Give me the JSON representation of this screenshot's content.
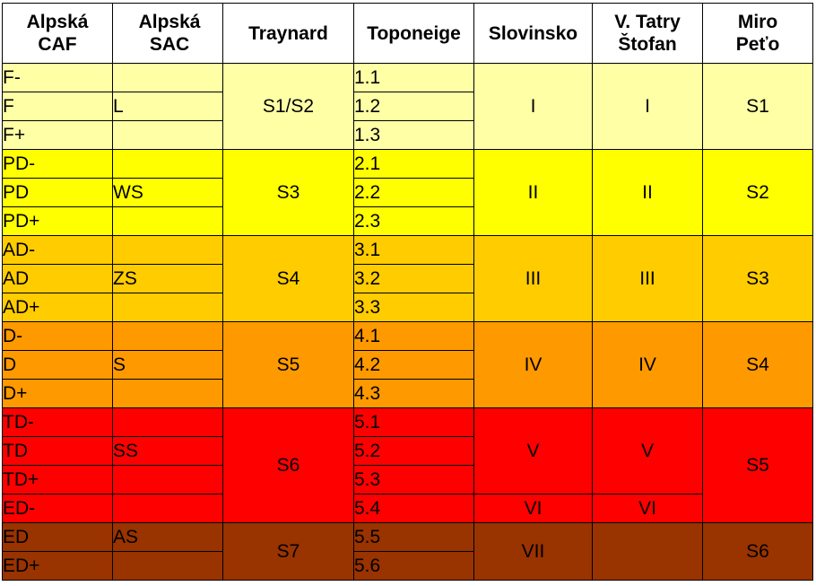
{
  "headers": {
    "caf": [
      "Alpská",
      "CAF"
    ],
    "sac": [
      "Alpská",
      "SAC"
    ],
    "traynard": "Traynard",
    "toponeige": "Toponeige",
    "slovinsko": "Slovinsko",
    "tatry": [
      "V. Tatry",
      "Štofan"
    ],
    "miro": [
      "Miro",
      "Peťo"
    ]
  },
  "colors": {
    "band1": "#FFFFA6",
    "band2": "#FFFF00",
    "band3": "#FFCC00",
    "band4": "#FF9900",
    "band5": "#FF0000",
    "band6": "#993300"
  },
  "caf": [
    "F-",
    "F",
    "F+",
    "PD-",
    "PD",
    "PD+",
    "AD-",
    "AD",
    "AD+",
    "D-",
    "D",
    "D+",
    "TD-",
    "TD",
    "TD+",
    "ED-",
    "ED",
    "ED+"
  ],
  "sac": [
    "L",
    "WS",
    "ZS",
    "S",
    "SS",
    "AS"
  ],
  "traynard": [
    "S1/S2",
    "S3",
    "S4",
    "S5",
    "S6",
    "S7"
  ],
  "toponeige": [
    "1.1",
    "1.2",
    "1.3",
    "2.1",
    "2.2",
    "2.3",
    "3.1",
    "3.2",
    "3.3",
    "4.1",
    "4.2",
    "4.3",
    "5.1",
    "5.2",
    "5.3",
    "5.4",
    "5.5",
    "5.6"
  ],
  "slovinsko": [
    "I",
    "II",
    "III",
    "IV",
    "V",
    "VI",
    "VII"
  ],
  "tatry": [
    "I",
    "II",
    "III",
    "IV",
    "V",
    "VI"
  ],
  "miro": [
    "S1",
    "S2",
    "S3",
    "S4",
    "S5",
    "S6"
  ]
}
